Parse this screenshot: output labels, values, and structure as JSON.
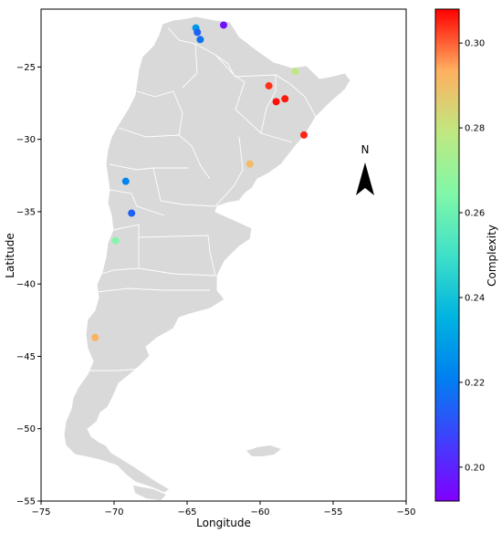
{
  "chart_data": {
    "type": "scatter",
    "xlabel": "Longitude",
    "ylabel": "Latitude",
    "xlim": [
      -75,
      -50
    ],
    "ylim": [
      -55,
      -21
    ],
    "xticks": [
      -75,
      -70,
      -65,
      -60,
      -55,
      -50
    ],
    "yticks": [
      -55,
      -50,
      -45,
      -40,
      -35,
      -30,
      -25
    ],
    "background_shape": "Argentina provinces map (light gray)",
    "north_arrow_label": "N",
    "colorbar": {
      "label": "Complexity",
      "min": 0.192,
      "max": 0.308,
      "ticks": [
        0.2,
        0.22,
        0.24,
        0.26,
        0.28,
        0.3
      ],
      "colormap": "rainbow"
    },
    "points": [
      {
        "lon": -62.5,
        "lat": -22.1,
        "value": 0.196
      },
      {
        "lon": -64.4,
        "lat": -22.3,
        "value": 0.228
      },
      {
        "lon": -64.3,
        "lat": -22.6,
        "value": 0.214
      },
      {
        "lon": -64.1,
        "lat": -23.1,
        "value": 0.218
      },
      {
        "lon": -57.6,
        "lat": -25.3,
        "value": 0.279
      },
      {
        "lon": -59.4,
        "lat": -26.3,
        "value": 0.304
      },
      {
        "lon": -58.3,
        "lat": -27.2,
        "value": 0.306
      },
      {
        "lon": -58.9,
        "lat": -27.4,
        "value": 0.307
      },
      {
        "lon": -57.0,
        "lat": -29.7,
        "value": 0.305
      },
      {
        "lon": -60.7,
        "lat": -31.7,
        "value": 0.291
      },
      {
        "lon": -69.2,
        "lat": -32.9,
        "value": 0.222
      },
      {
        "lon": -68.8,
        "lat": -35.1,
        "value": 0.214
      },
      {
        "lon": -69.9,
        "lat": -37.0,
        "value": 0.265
      },
      {
        "lon": -71.3,
        "lat": -43.7,
        "value": 0.293
      }
    ]
  }
}
